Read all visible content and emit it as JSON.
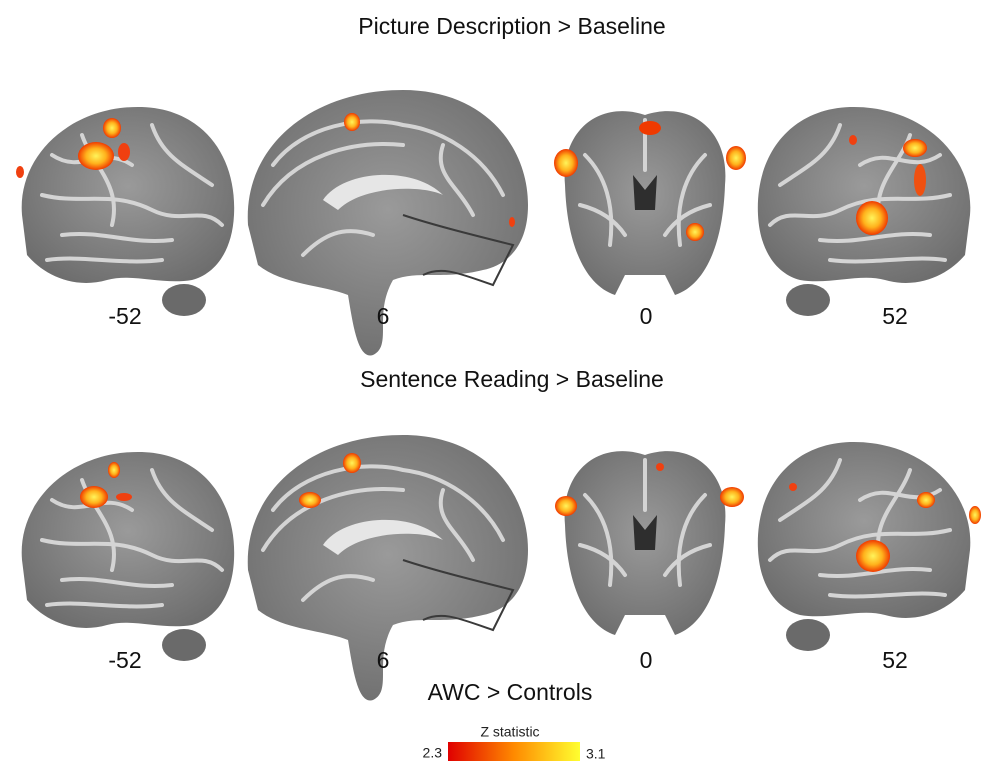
{
  "panels": [
    {
      "title": "Picture Description > Baseline",
      "slices": [
        {
          "label": "-52"
        },
        {
          "label": "6"
        },
        {
          "label": "0"
        },
        {
          "label": "52"
        }
      ]
    },
    {
      "title": "Sentence Reading > Baseline",
      "slices": [
        {
          "label": "-52"
        },
        {
          "label": "6"
        },
        {
          "label": "0"
        },
        {
          "label": "52"
        }
      ]
    }
  ],
  "footer": {
    "title": "AWC > Controls",
    "colorbar": {
      "label": "Z statistic",
      "min": 2.3,
      "max": 3.1
    }
  }
}
